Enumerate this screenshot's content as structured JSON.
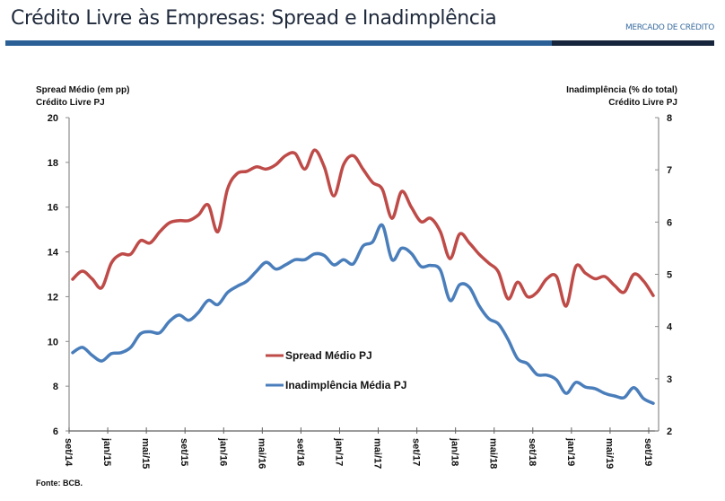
{
  "header": {
    "title": "Crédito Livre às Empresas: Spread e Inadimplência",
    "section": "MERCADO DE CRÉDITO"
  },
  "footer": {
    "source": "Fonte: BCB."
  },
  "colors": {
    "spread": "#be4b48",
    "inadimplencia": "#4a7ebb",
    "header_bar": "#2a6096",
    "header_bar_dark": "#16253c"
  },
  "chart_data": {
    "type": "line",
    "title": "Crédito Livre às Empresas: Spread e Inadimplência",
    "xlabel": "",
    "ylabel_left": [
      "Spread Médio (em pp)",
      "Crédito Livre PJ"
    ],
    "ylabel_right": [
      "Inadimplência (% do total)",
      "Crédito Livre PJ"
    ],
    "ylim_left": [
      6,
      20
    ],
    "ylim_right": [
      2,
      8
    ],
    "yticks_left": [
      "20",
      "18",
      "16",
      "14",
      "12",
      "10",
      "8",
      "6"
    ],
    "yticks_right": [
      "8",
      "7",
      "6",
      "5",
      "4",
      "3",
      "2"
    ],
    "x_start": "set/14",
    "x_end": "set/19",
    "x_tick_labels": [
      "set/14",
      "jan/15",
      "mai/15",
      "set/15",
      "jan/16",
      "mai/16",
      "set/16",
      "jan/17",
      "mai/17",
      "set/17",
      "jan/18",
      "mai/18",
      "set/18",
      "jan/19",
      "mai/19",
      "set/19"
    ],
    "x_tick_interval_months": 4,
    "grid": false,
    "legend_position": "center-left",
    "series": [
      {
        "name": "Spread Médio PJ",
        "axis": "left",
        "values": [
          12.78,
          13.14,
          12.8,
          12.4,
          13.5,
          13.9,
          13.9,
          14.5,
          14.4,
          14.9,
          15.3,
          15.4,
          15.4,
          15.65,
          16.1,
          14.9,
          16.8,
          17.5,
          17.6,
          17.8,
          17.7,
          17.9,
          18.3,
          18.4,
          17.7,
          18.55,
          17.8,
          16.5,
          17.9,
          18.3,
          17.7,
          17.1,
          16.8,
          15.5,
          16.7,
          16.0,
          15.35,
          15.5,
          14.9,
          13.7,
          14.8,
          14.4,
          13.9,
          13.5,
          13.1,
          11.9,
          12.65,
          12.0,
          12.2,
          12.8,
          12.9,
          11.58,
          13.35,
          13.05,
          12.8,
          12.9,
          12.5,
          12.2,
          13.0,
          12.7,
          12.05
        ]
      },
      {
        "name": "Inadimplência Média PJ",
        "axis": "right",
        "values": [
          3.5,
          3.6,
          3.45,
          3.34,
          3.48,
          3.5,
          3.6,
          3.86,
          3.9,
          3.88,
          4.1,
          4.22,
          4.12,
          4.27,
          4.5,
          4.42,
          4.65,
          4.77,
          4.87,
          5.06,
          5.23,
          5.1,
          5.18,
          5.28,
          5.28,
          5.39,
          5.36,
          5.18,
          5.28,
          5.2,
          5.54,
          5.62,
          5.94,
          5.28,
          5.5,
          5.4,
          5.15,
          5.17,
          5.08,
          4.5,
          4.8,
          4.75,
          4.4,
          4.15,
          4.05,
          3.75,
          3.38,
          3.29,
          3.08,
          3.07,
          2.98,
          2.72,
          2.93,
          2.84,
          2.81,
          2.72,
          2.67,
          2.64,
          2.83,
          2.62,
          2.53
        ]
      }
    ]
  }
}
